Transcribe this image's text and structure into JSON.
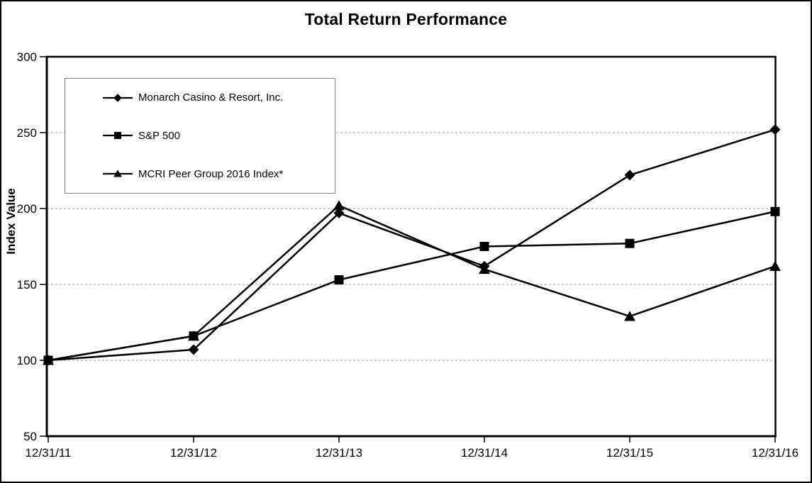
{
  "chart_data": {
    "type": "line",
    "title": "Total Return Performance",
    "xlabel": "",
    "ylabel": "Index Value",
    "categories": [
      "12/31/11",
      "12/31/12",
      "12/31/13",
      "12/31/14",
      "12/31/15",
      "12/31/16"
    ],
    "yticks": [
      50,
      100,
      150,
      200,
      250,
      300
    ],
    "ylim": [
      50,
      300
    ],
    "grid": "horizontal dashed gridlines at 100/150/200/250",
    "legend_position": "inside top-left, boxed",
    "colors": {
      "series": "#000000",
      "gridline": "#999999",
      "legend_border": "#808080",
      "frame_border": "#000000",
      "background": "#ffffff"
    },
    "series": [
      {
        "name": "Monarch Casino & Resort, Inc.",
        "marker": "diamond",
        "values": [
          100,
          107,
          197,
          162,
          222,
          252
        ]
      },
      {
        "name": "S&P 500",
        "marker": "square",
        "values": [
          100,
          116,
          153,
          175,
          177,
          198
        ]
      },
      {
        "name": "MCRI Peer Group 2016 Index*",
        "marker": "triangle",
        "values": [
          100,
          116,
          202,
          160,
          129,
          162
        ]
      }
    ]
  }
}
